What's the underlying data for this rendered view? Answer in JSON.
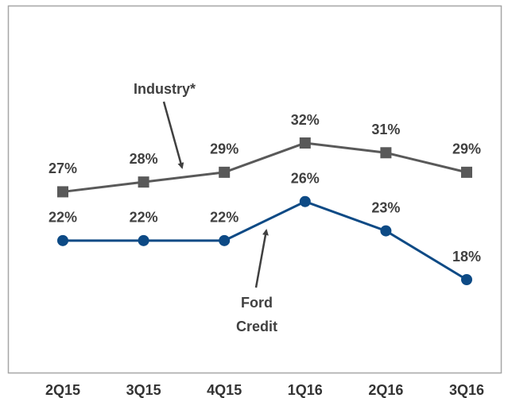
{
  "chart_data": {
    "type": "line",
    "categories": [
      "2Q15",
      "3Q15",
      "4Q15",
      "1Q16",
      "2Q16",
      "3Q16"
    ],
    "series": [
      {
        "name": "Industry*",
        "color": "#595959",
        "marker": "square",
        "values": [
          27,
          28,
          29,
          32,
          31,
          29
        ],
        "value_labels": [
          "27%",
          "28%",
          "29%",
          "32%",
          "31%",
          "29%"
        ]
      },
      {
        "name": "Ford Credit",
        "color": "#0d4a85",
        "marker": "circle",
        "values": [
          22,
          22,
          22,
          26,
          23,
          18
        ],
        "value_labels": [
          "22%",
          "22%",
          "22%",
          "26%",
          "23%",
          "18%"
        ]
      }
    ]
  }
}
